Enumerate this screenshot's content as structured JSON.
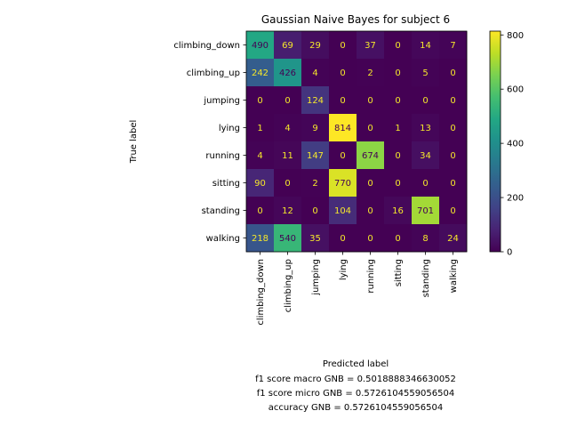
{
  "chart_data": {
    "type": "heatmap",
    "title": "Gaussian Naive Bayes for subject 6",
    "xlabel": "Predicted label",
    "ylabel": "True label",
    "x_categories": [
      "climbing_down",
      "climbing_up",
      "jumping",
      "lying",
      "running",
      "sitting",
      "standing",
      "walking"
    ],
    "y_categories": [
      "climbing_down",
      "climbing_up",
      "jumping",
      "lying",
      "running",
      "sitting",
      "standing",
      "walking"
    ],
    "matrix": [
      [
        490,
        69,
        29,
        0,
        37,
        0,
        14,
        7
      ],
      [
        242,
        426,
        4,
        0,
        2,
        0,
        5,
        0
      ],
      [
        0,
        0,
        124,
        0,
        0,
        0,
        0,
        0
      ],
      [
        1,
        4,
        9,
        814,
        0,
        1,
        13,
        0
      ],
      [
        4,
        11,
        147,
        0,
        674,
        0,
        34,
        0
      ],
      [
        90,
        0,
        2,
        770,
        0,
        0,
        0,
        0
      ],
      [
        0,
        12,
        0,
        104,
        0,
        16,
        701,
        0
      ],
      [
        218,
        540,
        35,
        0,
        0,
        0,
        8,
        24
      ]
    ],
    "colorbar": {
      "colormap": "viridis",
      "min": 0,
      "max": 814,
      "ticks": [
        0,
        200,
        400,
        600,
        800
      ]
    },
    "footer": [
      "f1 score macro GNB = 0.5018888346630052",
      "f1 score micro GNB = 0.5726104559056504",
      "accuracy GNB = 0.5726104559056504"
    ],
    "colors": {
      "text_light": "#f5e72b",
      "text_dark": "#440154"
    }
  }
}
